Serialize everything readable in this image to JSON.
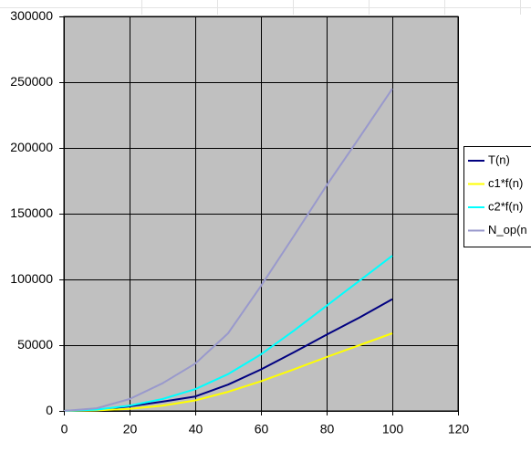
{
  "chart_data": {
    "type": "line",
    "x": [
      0,
      10,
      20,
      30,
      40,
      50,
      60,
      70,
      80,
      90,
      100
    ],
    "series": [
      {
        "name": "T(n)",
        "color": "#000080",
        "values": [
          0,
          800,
          3500,
          7000,
          11000,
          20000,
          31500,
          44500,
          58000,
          71000,
          85000
        ]
      },
      {
        "name": "c1*f(n)",
        "color": "#ffff00",
        "values": [
          0,
          400,
          1500,
          4000,
          8000,
          14500,
          22500,
          31500,
          41000,
          50000,
          59000
        ]
      },
      {
        "name": "c2*f(n)",
        "color": "#00ffff",
        "values": [
          0,
          1000,
          4000,
          9000,
          16500,
          28000,
          43000,
          61000,
          80000,
          99000,
          118000
        ]
      },
      {
        "name": "N_op(n",
        "color": "#9999cc",
        "values": [
          0,
          2000,
          9000,
          21000,
          36000,
          59000,
          95000,
          133000,
          171500,
          208000,
          245000
        ]
      }
    ],
    "xlim": [
      0,
      120
    ],
    "xticks": [
      0,
      20,
      40,
      60,
      80,
      100,
      120
    ],
    "ylim": [
      0,
      300000
    ],
    "yticks": [
      0,
      50000,
      100000,
      150000,
      200000,
      250000,
      300000
    ],
    "grid": true,
    "legend": "right",
    "plot_background": "#c0c0c0"
  }
}
